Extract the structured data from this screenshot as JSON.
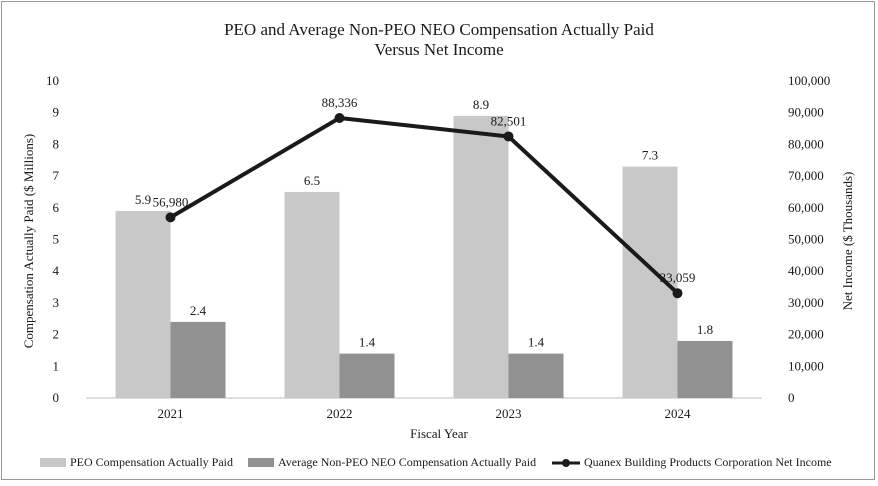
{
  "chart_data": {
    "type": "bar",
    "title_line1": "PEO and Average Non-PEO NEO Compensation Actually Paid",
    "title_line2": "Versus Net Income",
    "xlabel": "Fiscal Year",
    "ylabel": "Compensation Actually Paid ($ Millions)",
    "y2label": "Net Income ($ Thousands)",
    "categories": [
      "2021",
      "2022",
      "2023",
      "2024"
    ],
    "ylim": [
      0,
      10
    ],
    "y_ticks": [
      "0",
      "1",
      "2",
      "3",
      "4",
      "5",
      "6",
      "7",
      "8",
      "9",
      "10"
    ],
    "y2lim": [
      0,
      100000
    ],
    "y2_ticks": [
      "0",
      "10,000",
      "20,000",
      "30,000",
      "40,000",
      "50,000",
      "60,000",
      "70,000",
      "80,000",
      "90,000",
      "100,000"
    ],
    "series": [
      {
        "name": "PEO Compensation Actually Paid",
        "kind": "bar",
        "axis": "left",
        "color": "#c8c8c8",
        "values": [
          5.9,
          6.5,
          8.9,
          7.3
        ],
        "labels": [
          "5.9",
          "6.5",
          "8.9",
          "7.3"
        ]
      },
      {
        "name": "Average Non-PEO NEO Compensation Actually Paid",
        "kind": "bar",
        "axis": "left",
        "color": "#919191",
        "values": [
          2.4,
          1.4,
          1.4,
          1.8
        ],
        "labels": [
          "2.4",
          "1.4",
          "1.4",
          "1.8"
        ]
      },
      {
        "name": "Quanex Building Products Corporation Net Income",
        "kind": "line",
        "axis": "right",
        "color": "#1a1a1a",
        "values": [
          56980,
          88336,
          82501,
          33059
        ],
        "labels": [
          "56,980",
          "88,336",
          "82,501",
          "33,059"
        ]
      }
    ],
    "legend_position": "bottom"
  }
}
